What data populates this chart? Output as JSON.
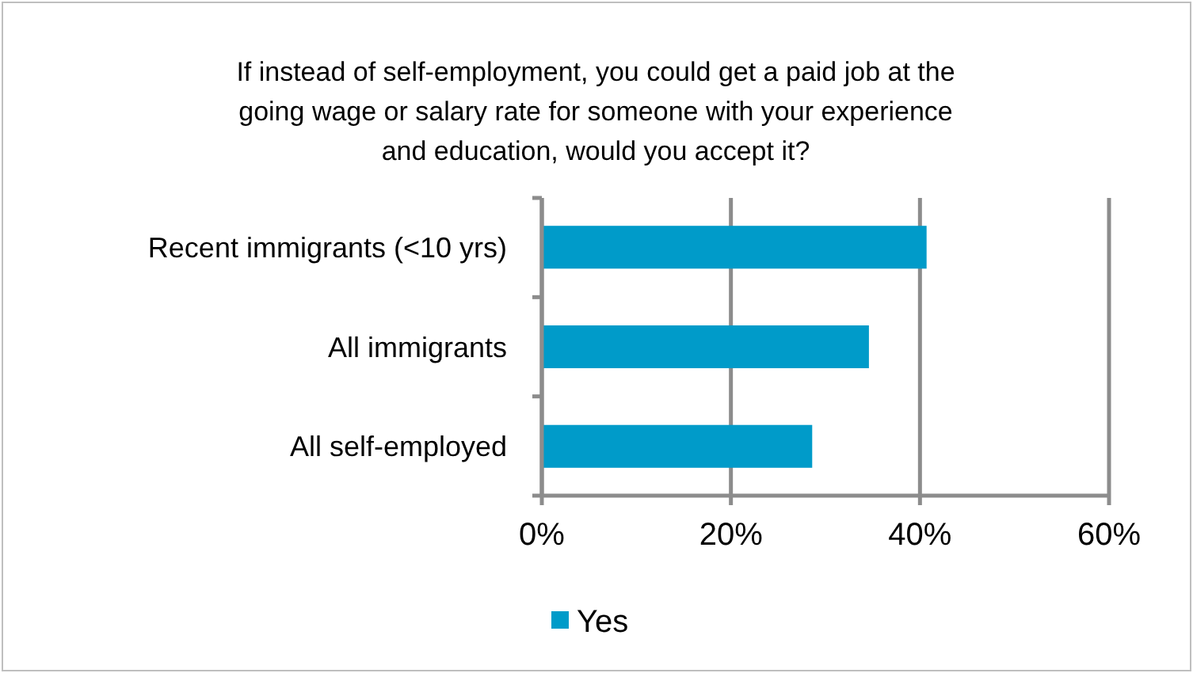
{
  "chart_data": {
    "type": "bar",
    "orientation": "horizontal",
    "title": "If instead of self-employment, you could get a paid job at the going wage or salary rate for someone with your experience and education, would you accept it?",
    "categories": [
      "Recent immigrants (<10 yrs)",
      "All immigrants",
      "All self-employed"
    ],
    "series": [
      {
        "name": "Yes",
        "color": "#009bc9",
        "values": [
          40.7,
          34.6,
          28.6
        ]
      }
    ],
    "xlim": [
      0,
      60
    ],
    "xticks": [
      {
        "value": 0,
        "label": "0%"
      },
      {
        "value": 20,
        "label": "20%"
      },
      {
        "value": 40,
        "label": "40%"
      },
      {
        "value": 60,
        "label": "60%"
      }
    ],
    "grid": "x",
    "legend": "bottom"
  }
}
